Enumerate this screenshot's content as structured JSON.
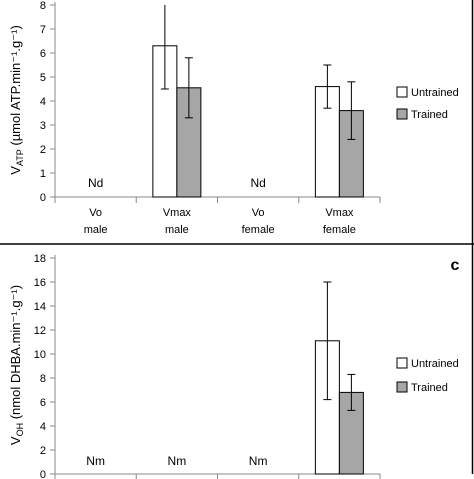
{
  "chart_data": [
    {
      "type": "bar",
      "panel_label": "",
      "ylabel_main": "V",
      "ylabel_sub": "ATP",
      "ylabel_rest": " (µmol ATP.min⁻¹.g⁻¹)",
      "ylim": [
        0,
        8
      ],
      "yticks": [
        0,
        1,
        2,
        3,
        4,
        5,
        6,
        7,
        8
      ],
      "categories": [
        {
          "line1": "Vo",
          "line2": "male"
        },
        {
          "line1": "Vmax",
          "line2": "male"
        },
        {
          "line1": "Vo",
          "line2": "female"
        },
        {
          "line1": "Vmax",
          "line2": "female"
        }
      ],
      "series": [
        {
          "name": "Untrained",
          "color": "#ffffff",
          "values": [
            null,
            6.3,
            null,
            4.6
          ],
          "errors": [
            null,
            1.8,
            null,
            0.9
          ]
        },
        {
          "name": "Trained",
          "color": "#a6a6a6",
          "values": [
            null,
            4.55,
            null,
            3.6
          ],
          "errors": [
            null,
            1.25,
            null,
            1.2
          ]
        }
      ],
      "annotations": [
        {
          "category": 0,
          "text": "Nd"
        },
        {
          "category": 2,
          "text": "Nd"
        }
      ],
      "legend": "right",
      "grid": false
    },
    {
      "type": "bar",
      "panel_label": "c",
      "ylabel_main": "V",
      "ylabel_sub": "OH",
      "ylabel_rest": " (nmol DHBA.min⁻¹.g⁻¹)",
      "ylim": [
        0,
        18
      ],
      "yticks": [
        0,
        2,
        4,
        6,
        8,
        10,
        12,
        14,
        16,
        18
      ],
      "categories": [
        {
          "line1": "",
          "line2": ""
        },
        {
          "line1": "",
          "line2": ""
        },
        {
          "line1": "",
          "line2": ""
        },
        {
          "line1": "",
          "line2": ""
        }
      ],
      "series": [
        {
          "name": "Untrained",
          "color": "#ffffff",
          "values": [
            null,
            null,
            null,
            11.1
          ],
          "errors": [
            null,
            null,
            null,
            4.9
          ]
        },
        {
          "name": "Trained",
          "color": "#a6a6a6",
          "values": [
            null,
            null,
            null,
            6.8
          ],
          "errors": [
            null,
            null,
            null,
            1.5
          ]
        }
      ],
      "annotations": [
        {
          "category": 0,
          "text": "Nm"
        },
        {
          "category": 1,
          "text": "Nm"
        },
        {
          "category": 2,
          "text": "Nm"
        }
      ],
      "legend": "right",
      "grid": false
    }
  ]
}
